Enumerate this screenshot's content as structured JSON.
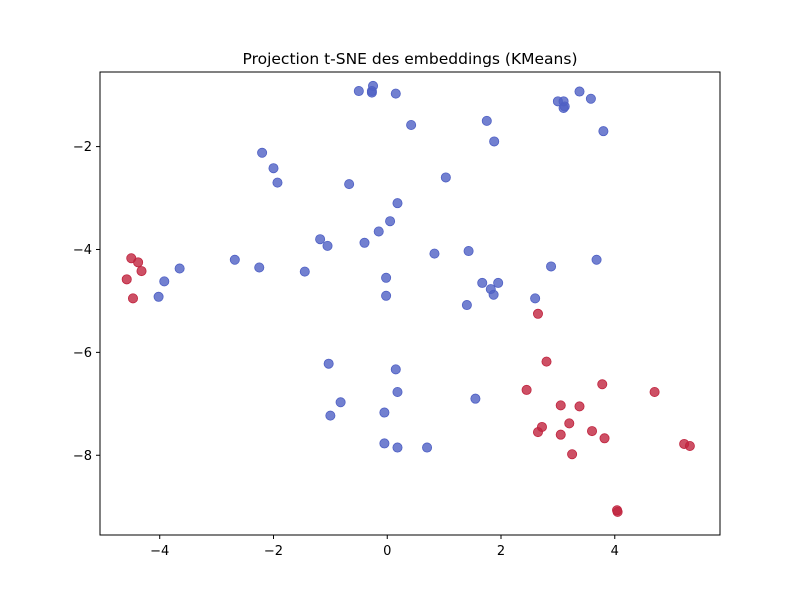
{
  "chart_data": {
    "type": "scatter",
    "title": "Projection t-SNE des embeddings (KMeans)",
    "xlabel": "",
    "ylabel": "",
    "xlim": [
      -5.05,
      5.85
    ],
    "ylim": [
      -9.55,
      -0.55
    ],
    "xticks": [
      -4,
      -2,
      0,
      2,
      4
    ],
    "yticks": [
      -8,
      -6,
      -4,
      -2
    ],
    "tick_labels": {
      "x": [
        "−4",
        "−2",
        "0",
        "2",
        "4"
      ],
      "y": [
        "−8",
        "−6",
        "−4",
        "−2"
      ]
    },
    "grid": false,
    "legend": "none",
    "series": [
      {
        "color": "#4f60c4",
        "points": [
          [
            -0.5,
            -0.92
          ],
          [
            -0.25,
            -0.82
          ],
          [
            -0.27,
            -0.92
          ],
          [
            -0.27,
            -0.95
          ],
          [
            0.15,
            -0.97
          ],
          [
            0.42,
            -1.58
          ],
          [
            3.0,
            -1.12
          ],
          [
            3.1,
            -1.12
          ],
          [
            3.12,
            -1.22
          ],
          [
            3.1,
            -1.25
          ],
          [
            3.38,
            -0.93
          ],
          [
            3.58,
            -1.07
          ],
          [
            3.8,
            -1.7
          ],
          [
            1.75,
            -1.5
          ],
          [
            1.88,
            -1.9
          ],
          [
            -2.2,
            -2.12
          ],
          [
            -2.0,
            -2.42
          ],
          [
            -1.93,
            -2.7
          ],
          [
            -0.67,
            -2.73
          ],
          [
            1.03,
            -2.6
          ],
          [
            0.18,
            -3.1
          ],
          [
            0.05,
            -3.45
          ],
          [
            -0.15,
            -3.65
          ],
          [
            -0.4,
            -3.87
          ],
          [
            -1.18,
            -3.8
          ],
          [
            -1.05,
            -3.93
          ],
          [
            -1.45,
            -4.43
          ],
          [
            -2.25,
            -4.35
          ],
          [
            -2.68,
            -4.2
          ],
          [
            -3.65,
            -4.37
          ],
          [
            -3.92,
            -4.62
          ],
          [
            -4.02,
            -4.92
          ],
          [
            -0.02,
            -4.55
          ],
          [
            -0.02,
            -4.9
          ],
          [
            0.83,
            -4.08
          ],
          [
            1.43,
            -4.03
          ],
          [
            1.67,
            -4.65
          ],
          [
            1.82,
            -4.77
          ],
          [
            1.87,
            -4.88
          ],
          [
            1.95,
            -4.65
          ],
          [
            1.4,
            -5.08
          ],
          [
            2.6,
            -4.95
          ],
          [
            2.88,
            -4.33
          ],
          [
            3.68,
            -4.2
          ],
          [
            -1.03,
            -6.22
          ],
          [
            0.15,
            -6.33
          ],
          [
            -0.82,
            -6.97
          ],
          [
            -1.0,
            -7.23
          ],
          [
            0.18,
            -6.77
          ],
          [
            -0.05,
            -7.17
          ],
          [
            -0.05,
            -7.77
          ],
          [
            0.18,
            -7.85
          ],
          [
            0.7,
            -7.85
          ],
          [
            1.55,
            -6.9
          ]
        ]
      },
      {
        "color": "#c0243f",
        "points": [
          [
            -4.5,
            -4.17
          ],
          [
            -4.38,
            -4.25
          ],
          [
            -4.32,
            -4.42
          ],
          [
            -4.58,
            -4.58
          ],
          [
            -4.47,
            -4.95
          ],
          [
            2.65,
            -5.25
          ],
          [
            2.8,
            -6.18
          ],
          [
            2.45,
            -6.73
          ],
          [
            3.78,
            -6.62
          ],
          [
            4.7,
            -6.77
          ],
          [
            3.05,
            -7.03
          ],
          [
            3.38,
            -7.05
          ],
          [
            2.72,
            -7.45
          ],
          [
            2.65,
            -7.55
          ],
          [
            3.2,
            -7.38
          ],
          [
            3.05,
            -7.6
          ],
          [
            3.6,
            -7.53
          ],
          [
            3.82,
            -7.67
          ],
          [
            3.25,
            -7.98
          ],
          [
            5.22,
            -7.78
          ],
          [
            5.32,
            -7.82
          ],
          [
            4.05,
            -9.1
          ],
          [
            4.04,
            -9.07
          ]
        ]
      }
    ]
  }
}
